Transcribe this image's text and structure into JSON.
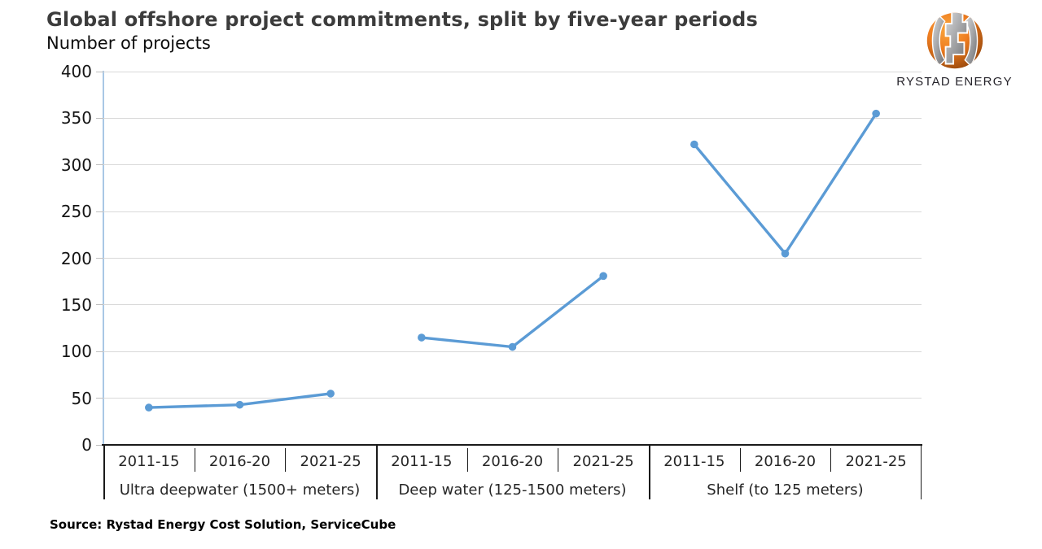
{
  "page": {
    "title": "Global offshore project commitments, split by five-year periods",
    "subtitle": "Number of projects",
    "source": "Source: Rystad Energy Cost Solution, ServiceCube"
  },
  "logo": {
    "brand": "RYSTAD ENERGY"
  },
  "colors": {
    "series": "#5B9BD5",
    "y_axis_line": "#A9C7E5",
    "gridline": "#D9D9D9",
    "tick": "#BFBFBF",
    "axis_dark": "#1a1a1a",
    "title_text": "#3C3C3C",
    "label_text": "#262626"
  },
  "chart_data": {
    "type": "line",
    "title": "Global offshore project commitments, split by five-year periods",
    "ylabel": "Number of projects",
    "ylim": [
      0,
      400
    ],
    "yticks": [
      0,
      50,
      100,
      150,
      200,
      250,
      300,
      350,
      400
    ],
    "grid": true,
    "legend": "none",
    "marker": "circle",
    "categories": [
      "2011-15",
      "2016-20",
      "2021-25"
    ],
    "groups": [
      {
        "label": "Ultra deepwater (1500+ meters)",
        "values": [
          40,
          43,
          55
        ]
      },
      {
        "label": "Deep water (125-1500 meters)",
        "values": [
          115,
          105,
          181
        ]
      },
      {
        "label": "Shelf (to 125 meters)",
        "values": [
          322,
          205,
          355
        ]
      }
    ]
  }
}
